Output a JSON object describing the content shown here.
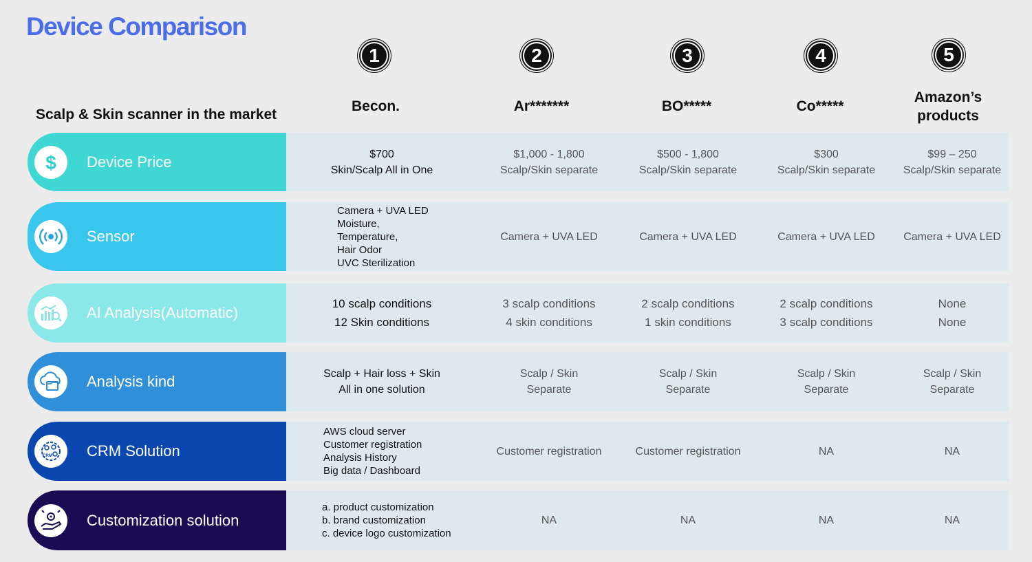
{
  "title": "Device Comparison",
  "subtitle": "Scalp & Skin scanner in the market",
  "column_numbers": [
    "1",
    "2",
    "3",
    "4",
    "5"
  ],
  "columns": [
    "Becon.",
    "Ar*******",
    "BO*****",
    "Co*****",
    "Amazon’s products"
  ],
  "rows": [
    {
      "label": "Device Price",
      "color": "#3fd6d3",
      "icon": "dollar-icon",
      "cells": [
        "$700\nSkin/Scalp  All in One",
        "$1,000 - 1,800\nScalp/Skin separate",
        "$500 - 1,800\nScalp/Skin separate",
        "$300\nScalp/Skin separate",
        "$99 – 250\nScalp/Skin separate"
      ]
    },
    {
      "label": "Sensor",
      "color": "#38c6ec",
      "icon": "signal-icon",
      "cells": [
        "Camera + UVA LED\nMoisture,\nTemperature,\nHair Odor\nUVC Sterilization",
        "Camera + UVA LED",
        "Camera + UVA LED",
        "Camera + UVA LED",
        "Camera + UVA LED"
      ]
    },
    {
      "label": "AI Analysis(Automatic)",
      "color": "#8be8e8",
      "icon": "analytics-icon",
      "cells": [
        "10 scalp conditions\n12 Skin conditions",
        "3 scalp conditions\n4 skin conditions",
        "2 scalp conditions\n1 skin conditions",
        "2 scalp conditions\n3 scalp conditions",
        "None\nNone"
      ]
    },
    {
      "label": "Analysis kind",
      "color": "#2f8fd8",
      "icon": "cloud-folder-icon",
      "cells": [
        "Scalp + Hair loss + Skin\nAll in one solution",
        "Scalp / Skin\nSeparate",
        "Scalp / Skin\nSeparate",
        "Scalp / Skin\nSeparate",
        "Scalp / Skin\nSeparate"
      ]
    },
    {
      "label": "CRM Solution",
      "color": "#0a48b0",
      "icon": "crm-icon",
      "cells": [
        "AWS cloud server\nCustomer registration\nAnalysis History\nBig data / Dashboard",
        "Customer registration",
        "Customer registration",
        "NA",
        "NA"
      ]
    },
    {
      "label": "Customization solution",
      "color": "#1b0b52",
      "icon": "hand-gear-icon",
      "cells": [
        "a. product customization\nb. brand customization\nc. device logo customization",
        "NA",
        "NA",
        "NA",
        "NA"
      ]
    }
  ]
}
